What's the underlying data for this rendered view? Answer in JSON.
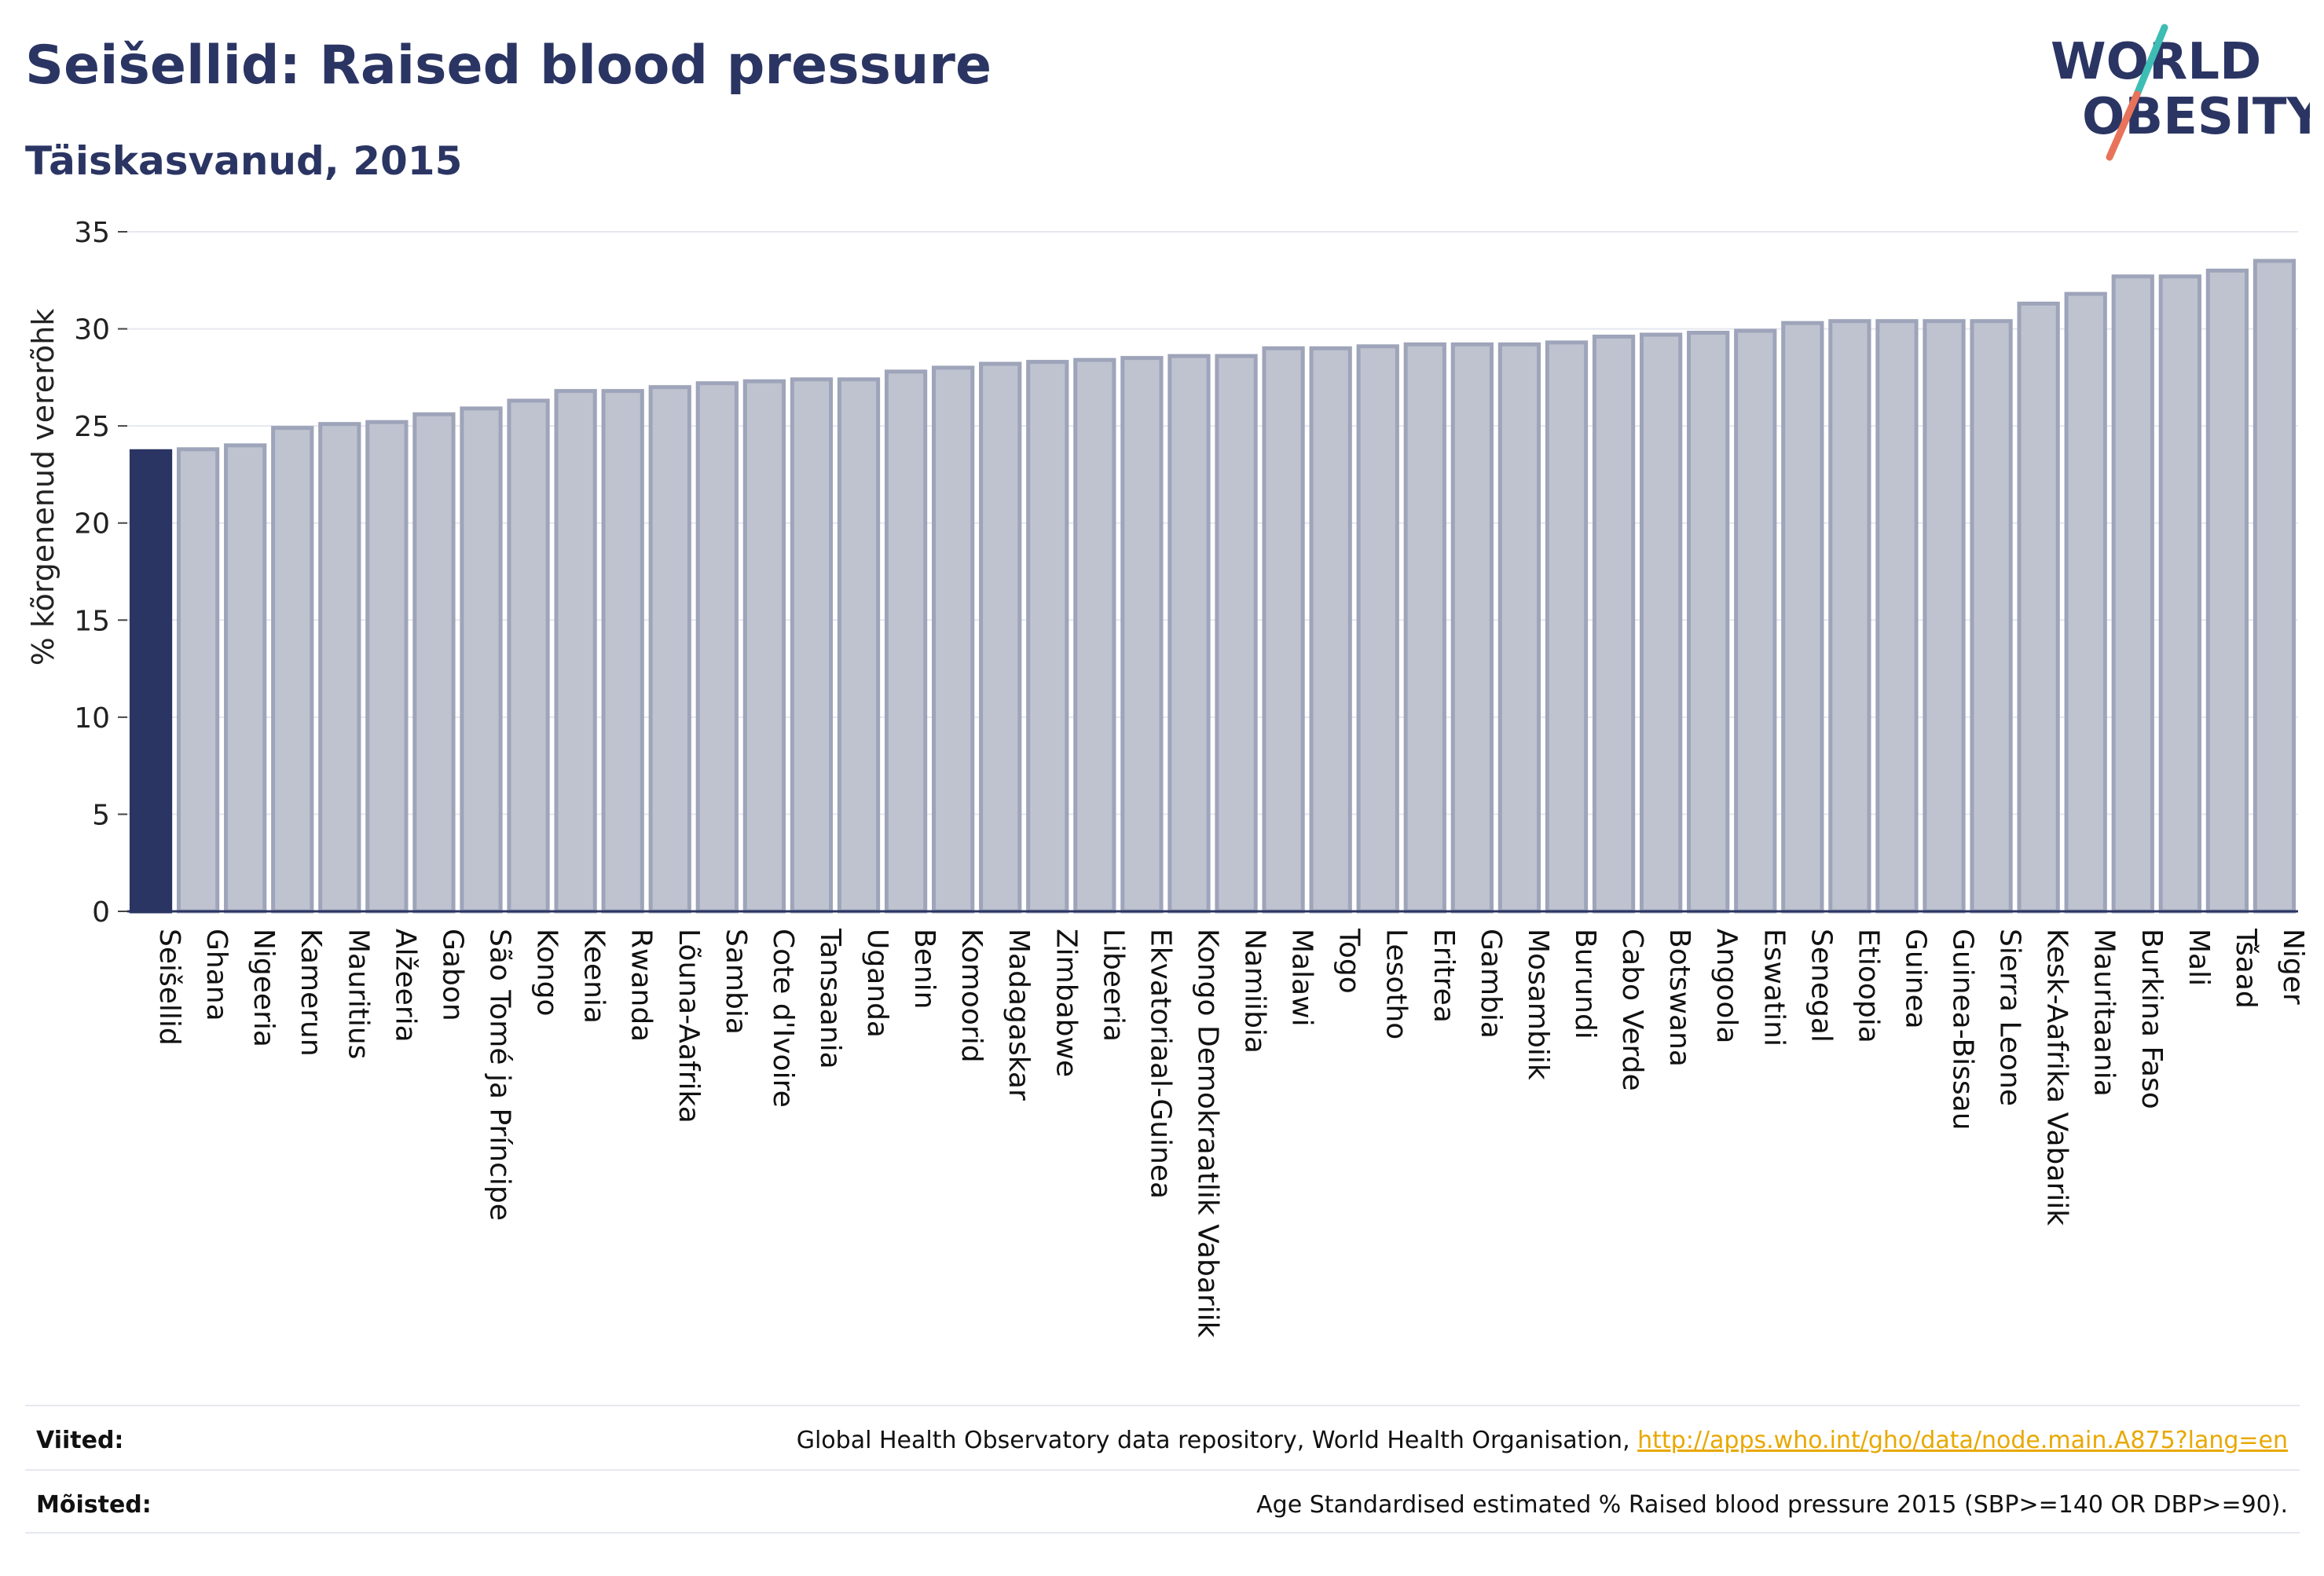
{
  "header": {
    "title": "Seišellid: Raised blood pressure",
    "subtitle": "Täiskasvanud, 2015"
  },
  "logo": {
    "line1": "WORLD",
    "line2": "OBESITY"
  },
  "colors": {
    "highlight": "#2b3563",
    "bar_fill": "#bfc3d0",
    "bar_stroke": "#9ea4b9",
    "accent_teal": "#3dbdb4",
    "accent_coral": "#e8735a",
    "link": "#e8a800"
  },
  "chart_data": {
    "type": "bar",
    "title": "Seišellid: Raised blood pressure",
    "subtitle": "Täiskasvanud, 2015",
    "ylabel": "% kõrgenenud vererõhk",
    "xlabel": "",
    "ylim": [
      0,
      35
    ],
    "yticks": [
      0,
      5,
      10,
      15,
      20,
      25,
      30,
      35
    ],
    "grid": true,
    "highlight": "Seišellid",
    "categories": [
      "Seišellid",
      "Ghana",
      "Nigeeria",
      "Kamerun",
      "Mauritius",
      "Alžeeria",
      "Gabon",
      "São Tomé ja Príncipe",
      "Kongo",
      "Keenia",
      "Rwanda",
      "Lõuna-Aafrika",
      "Sambia",
      "Cote d'Ivoire",
      "Tansaania",
      "Uganda",
      "Benin",
      "Komoorid",
      "Madagaskar",
      "Zimbabwe",
      "Libeeria",
      "Ekvatoriaal-Guinea",
      "Kongo Demokraatlik Vabariik",
      "Namiibia",
      "Malawi",
      "Togo",
      "Lesotho",
      "Eritrea",
      "Gambia",
      "Mosambiik",
      "Burundi",
      "Cabo Verde",
      "Botswana",
      "Angoola",
      "Eswatini",
      "Senegal",
      "Etioopia",
      "Guinea",
      "Guinea-Bissau",
      "Sierra Leone",
      "Kesk-Aafrika Vabariik",
      "Mauritaania",
      "Burkina Faso",
      "Mali",
      "Tšaad",
      "Niger"
    ],
    "values": [
      23.7,
      23.8,
      24.0,
      24.9,
      25.1,
      25.2,
      25.6,
      25.9,
      26.3,
      26.8,
      26.8,
      27.0,
      27.2,
      27.3,
      27.4,
      27.4,
      27.8,
      28.0,
      28.2,
      28.3,
      28.4,
      28.5,
      28.6,
      28.6,
      29.0,
      29.0,
      29.1,
      29.2,
      29.2,
      29.2,
      29.3,
      29.6,
      29.7,
      29.8,
      29.9,
      30.3,
      30.4,
      30.4,
      30.4,
      30.4,
      31.3,
      31.8,
      32.7,
      32.7,
      33.0,
      33.5
    ]
  },
  "footer": {
    "sources_label": "Viited:",
    "sources_text": "Global Health Observatory data repository, World Health Organisation, ",
    "sources_link": "http://apps.who.int/gho/data/node.main.A875?lang=en",
    "definitions_label": "Mõisted:",
    "definitions_text": "Age Standardised estimated % Raised blood pressure 2015 (SBP>=140 OR DBP>=90)."
  }
}
